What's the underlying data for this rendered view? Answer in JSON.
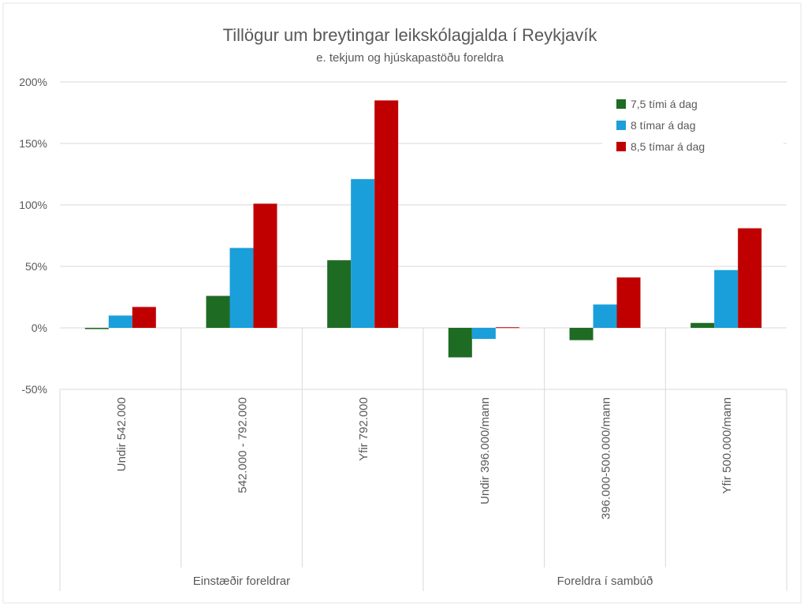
{
  "chart_data": {
    "type": "bar",
    "title": "Tillögur um breytingar leikskólagjalda í Reykjavík",
    "subtitle": "e. tekjum og hjúskapastöðu foreldra",
    "categories": [
      "Undir 542.000",
      "542.000 - 792.000",
      "Yfir 792.000",
      "Undir 396.000/mann",
      "396.000-500.000/mann",
      "Yfir 500.000/mann"
    ],
    "groups": [
      {
        "label": "Einstæðir foreldrar",
        "span": 3
      },
      {
        "label": "Foreldra í sambúð",
        "span": 3
      }
    ],
    "series": [
      {
        "name": "7,5 tími á dag",
        "color": "#1e6b24",
        "values": [
          -1,
          26,
          55,
          -24,
          -10,
          4
        ]
      },
      {
        "name": "8 tímar á dag",
        "color": "#1a9fda",
        "values": [
          10,
          65,
          121,
          -9,
          19,
          47
        ]
      },
      {
        "name": "8,5 tímar á dag",
        "color": "#c00000",
        "values": [
          17,
          101,
          185,
          0.5,
          41,
          81
        ]
      }
    ],
    "ylim": [
      -50,
      200
    ],
    "yticks": [
      -50,
      0,
      50,
      100,
      150,
      200
    ],
    "ytick_labels": [
      "-50%",
      "0%",
      "50%",
      "100%",
      "150%",
      "200%"
    ],
    "grid": true,
    "legend_position": "top-right"
  }
}
